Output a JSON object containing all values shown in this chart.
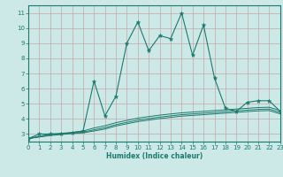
{
  "title": "",
  "xlabel": "Humidex (Indice chaleur)",
  "bg_color": "#cce9e7",
  "grid_color": "#b0d4d1",
  "line_color": "#1a7a6e",
  "xlim": [
    0,
    23
  ],
  "ylim": [
    2.5,
    11.5
  ],
  "xticks": [
    0,
    1,
    2,
    3,
    4,
    5,
    6,
    7,
    8,
    9,
    10,
    11,
    12,
    13,
    14,
    15,
    16,
    17,
    18,
    19,
    20,
    21,
    22,
    23
  ],
  "yticks": [
    3,
    4,
    5,
    6,
    7,
    8,
    9,
    10,
    11
  ],
  "series": [
    [
      0,
      2.7
    ],
    [
      1,
      3.0
    ],
    [
      2,
      3.0
    ],
    [
      3,
      3.0
    ],
    [
      4,
      3.1
    ],
    [
      5,
      3.2
    ],
    [
      6,
      6.5
    ],
    [
      7,
      4.2
    ],
    [
      8,
      5.5
    ],
    [
      9,
      9.0
    ],
    [
      10,
      10.4
    ],
    [
      11,
      8.5
    ],
    [
      12,
      9.5
    ],
    [
      13,
      9.3
    ],
    [
      14,
      11.0
    ],
    [
      15,
      8.2
    ],
    [
      16,
      10.2
    ],
    [
      17,
      6.7
    ],
    [
      18,
      4.7
    ],
    [
      19,
      4.5
    ],
    [
      20,
      5.1
    ],
    [
      21,
      5.2
    ],
    [
      22,
      5.2
    ],
    [
      23,
      4.5
    ]
  ],
  "flat_series": [
    [
      [
        0,
        2.7
      ],
      [
        2,
        3.0
      ],
      [
        4,
        3.1
      ],
      [
        5,
        3.2
      ],
      [
        6,
        3.4
      ],
      [
        7,
        3.55
      ],
      [
        8,
        3.75
      ],
      [
        10,
        4.05
      ],
      [
        12,
        4.25
      ],
      [
        14,
        4.4
      ],
      [
        16,
        4.5
      ],
      [
        18,
        4.6
      ],
      [
        20,
        4.7
      ],
      [
        21,
        4.75
      ],
      [
        22,
        4.77
      ],
      [
        23,
        4.55
      ]
    ],
    [
      [
        0,
        2.7
      ],
      [
        2,
        2.95
      ],
      [
        4,
        3.07
      ],
      [
        5,
        3.12
      ],
      [
        6,
        3.28
      ],
      [
        7,
        3.42
      ],
      [
        8,
        3.62
      ],
      [
        10,
        3.92
      ],
      [
        12,
        4.12
      ],
      [
        14,
        4.28
      ],
      [
        16,
        4.38
      ],
      [
        18,
        4.48
      ],
      [
        20,
        4.58
      ],
      [
        21,
        4.63
      ],
      [
        22,
        4.65
      ],
      [
        23,
        4.43
      ]
    ],
    [
      [
        0,
        2.7
      ],
      [
        2,
        2.9
      ],
      [
        4,
        3.03
      ],
      [
        5,
        3.08
      ],
      [
        6,
        3.2
      ],
      [
        7,
        3.33
      ],
      [
        8,
        3.53
      ],
      [
        10,
        3.82
      ],
      [
        12,
        4.02
      ],
      [
        14,
        4.18
      ],
      [
        16,
        4.28
      ],
      [
        18,
        4.38
      ],
      [
        20,
        4.48
      ],
      [
        21,
        4.53
      ],
      [
        22,
        4.55
      ],
      [
        23,
        4.33
      ]
    ]
  ]
}
